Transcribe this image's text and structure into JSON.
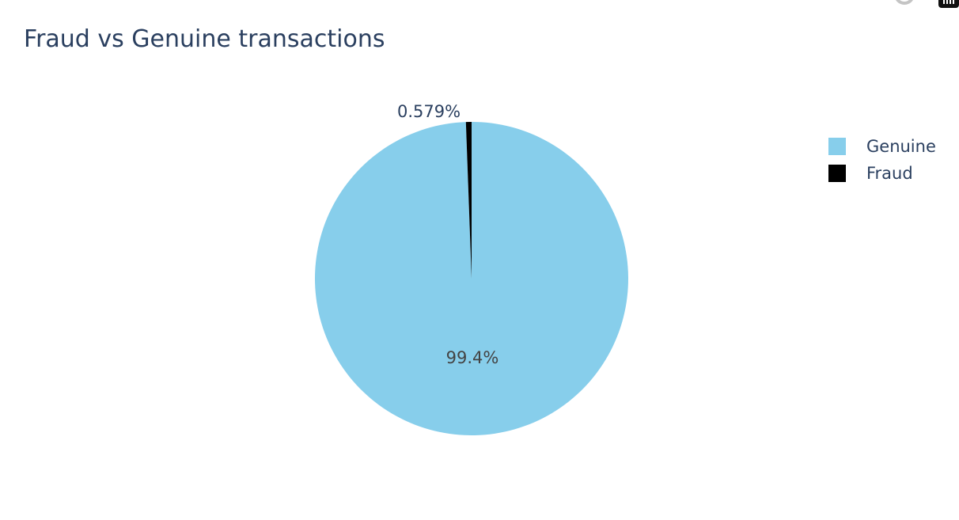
{
  "chart_data": {
    "type": "pie",
    "title": "Fraud vs Genuine transactions",
    "labels": [
      "Genuine",
      "Fraud"
    ],
    "values": [
      99.421,
      0.579
    ],
    "text_labels": [
      "99.4%",
      "0.579%"
    ],
    "colors": [
      "#87ceeb",
      "#000000"
    ],
    "direction": "clockwise",
    "rotation": "starts at top (12 o'clock)",
    "legend_position": "top-right"
  },
  "legend": {
    "items": [
      {
        "label": "Genuine",
        "color": "#87ceeb"
      },
      {
        "label": "Fraud",
        "color": "#000000"
      }
    ]
  },
  "modebar": {
    "icons": [
      "reset-axes-icon",
      "plotly-logo-icon"
    ]
  }
}
